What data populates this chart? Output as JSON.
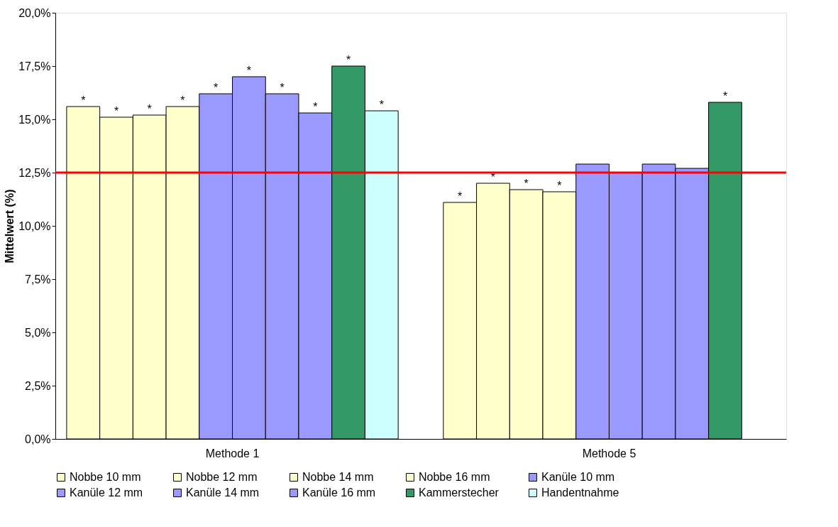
{
  "chart_data": {
    "type": "bar",
    "ylabel": "Mittelwert (%)",
    "categories": [
      "Methode 1",
      "Methode 5"
    ],
    "series": [
      {
        "name": "Nobbe 10 mm",
        "color": "#ffffcc",
        "values": [
          15.6,
          11.1
        ],
        "value_labels": [
          "*",
          "*"
        ]
      },
      {
        "name": "Nobbe 12 mm",
        "color": "#ffffcc",
        "values": [
          15.1,
          12.0
        ],
        "value_labels": [
          "*",
          "*"
        ]
      },
      {
        "name": "Nobbe 14 mm",
        "color": "#ffffcc",
        "values": [
          15.2,
          11.7
        ],
        "value_labels": [
          "*",
          "*"
        ]
      },
      {
        "name": "Nobbe 16 mm",
        "color": "#ffffcc",
        "values": [
          15.6,
          11.6
        ],
        "value_labels": [
          "*",
          "*"
        ]
      },
      {
        "name": "Kanüle 10 mm",
        "color": "#9999ff",
        "values": [
          16.2,
          12.9
        ],
        "value_labels": [
          "*",
          null
        ]
      },
      {
        "name": "Kanüle 12 mm",
        "color": "#9999ff",
        "values": [
          17.0,
          12.5
        ],
        "value_labels": [
          "*",
          null
        ]
      },
      {
        "name": "Kanüle 14 mm",
        "color": "#9999ff",
        "values": [
          16.2,
          12.9
        ],
        "value_labels": [
          "*",
          null
        ]
      },
      {
        "name": "Kanüle 16 mm",
        "color": "#9999ff",
        "values": [
          15.3,
          12.7
        ],
        "value_labels": [
          "*",
          null
        ]
      },
      {
        "name": "Kammerstecher",
        "color": "#339966",
        "values": [
          17.5,
          15.8
        ],
        "value_labels": [
          "*",
          "*"
        ]
      },
      {
        "name": "Handentnahme",
        "color": "#ccffff",
        "values": [
          15.4,
          null
        ],
        "value_labels": [
          "*",
          null
        ]
      }
    ],
    "ylim": [
      0,
      20
    ],
    "yticks": [
      {
        "value": 0,
        "label": "0,0%"
      },
      {
        "value": 2.5,
        "label": "2,5%"
      },
      {
        "value": 5,
        "label": "5,0%"
      },
      {
        "value": 7.5,
        "label": "7,5%"
      },
      {
        "value": 10,
        "label": "10,0%"
      },
      {
        "value": 12.5,
        "label": "12,5%"
      },
      {
        "value": 15,
        "label": "15,0%"
      },
      {
        "value": 17.5,
        "label": "17,5%"
      },
      {
        "value": 20,
        "label": "20,0%"
      }
    ],
    "ref_lines": [
      {
        "axis": "y",
        "value": 12.5,
        "color": "#ff0000"
      }
    ],
    "grid": false,
    "legend": "bottom"
  }
}
